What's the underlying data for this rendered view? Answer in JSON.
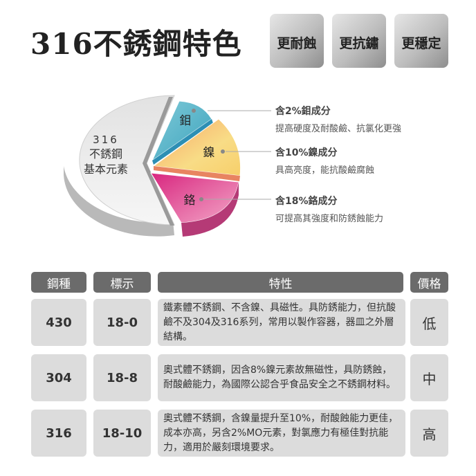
{
  "title": "316不銹鋼特色",
  "badges": [
    "更耐蝕",
    "更抗鏽",
    "更穩定"
  ],
  "pie": {
    "center_label": [
      "316",
      "不銹鋼",
      "基本元素"
    ],
    "slices": [
      {
        "label": "鉬",
        "color": "#4fb3c8"
      },
      {
        "label": "鎳",
        "color": "#f6cf72"
      },
      {
        "label": "鉻",
        "color": "#e0478f"
      }
    ],
    "base_color": "#e6e6e6"
  },
  "notes": [
    {
      "heading": "含2%鉬成分",
      "desc": "提高硬度及耐酸鹼、抗氯化更強"
    },
    {
      "heading": "含10%鎳成分",
      "desc": "具高亮度，能抗酸鹼腐蝕"
    },
    {
      "heading": "含18%鉻成分",
      "desc": "可提高其強度和防銹蝕能力"
    }
  ],
  "table": {
    "headers": [
      "鋼種",
      "標示",
      "特性",
      "價格"
    ],
    "rows": [
      {
        "grade": "430",
        "mark": "18-0",
        "desc": "鐵素體不銹鋼、不含鎳、具磁性。具防銹能力，但抗酸鹼不及304及316系列，常用以製作容器，器皿之外層結構。",
        "price": "低"
      },
      {
        "grade": "304",
        "mark": "18-8",
        "desc": "奧式體不銹鋼，因含8%鎳元素故無磁性，具防銹蝕，耐酸鹼能力，為國際公認合乎食品安全之不銹鋼材料。",
        "price": "中"
      },
      {
        "grade": "316",
        "mark": "18-10",
        "desc": "奧式體不銹鋼，含鎳量提升至10%，耐酸蝕能力更佳，成本亦高，另含2%MO元素，對氯應力有極佳對抗能力，適用於嚴刻環境要求。",
        "price": "高"
      }
    ]
  }
}
